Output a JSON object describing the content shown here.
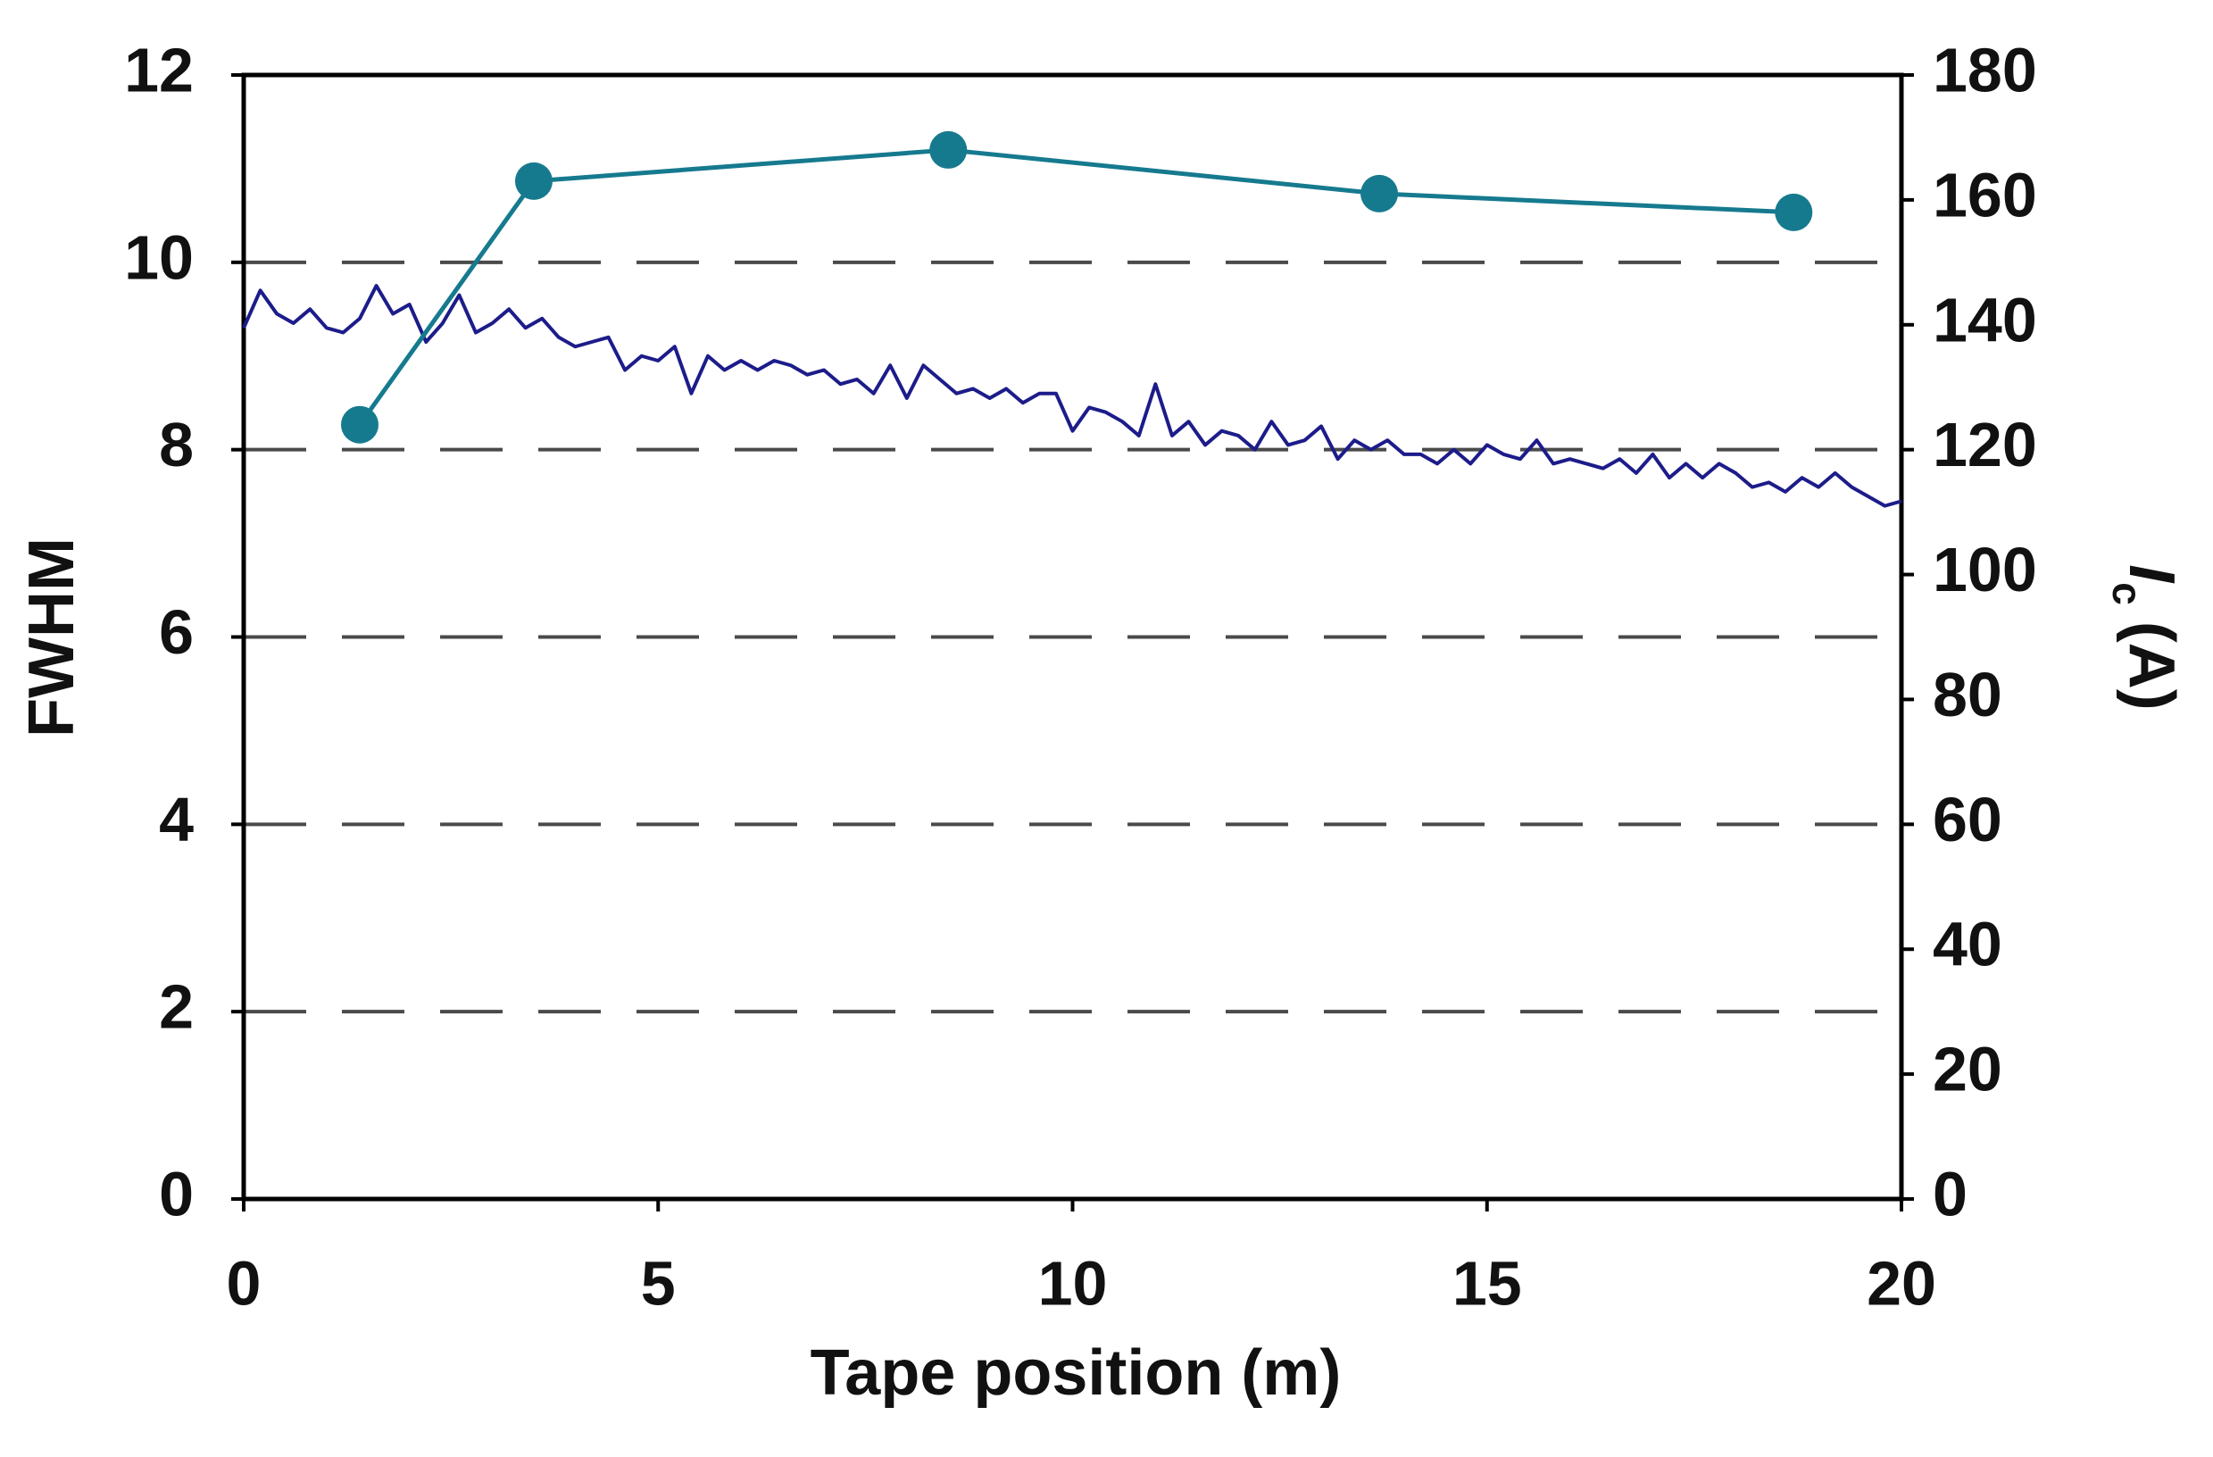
{
  "chart_data": {
    "type": "line",
    "x_label": "Tape position (m)",
    "y_label": "FWHM",
    "y2_label": {
      "italic": "I",
      "sub": "c",
      "rest": "(A)"
    },
    "xlim": [
      0,
      20
    ],
    "xticks": [
      0,
      5,
      10,
      15,
      20
    ],
    "ylim": [
      0,
      12
    ],
    "yticks": [
      0,
      2,
      4,
      6,
      8,
      10,
      12
    ],
    "y2lim": [
      0,
      180
    ],
    "y2ticks": [
      0,
      20,
      40,
      60,
      80,
      100,
      120,
      140,
      160,
      180
    ],
    "grid": true,
    "series": [
      {
        "color": "#1c1c8a",
        "x": [
          0,
          0.2,
          0.4,
          0.6,
          0.8,
          1.0,
          1.2,
          1.4,
          1.6,
          1.8,
          2.0,
          2.2,
          2.4,
          2.6,
          2.8,
          3.0,
          3.2,
          3.4,
          3.6,
          3.8,
          4.0,
          4.2,
          4.4,
          4.6,
          4.8,
          5.0,
          5.2,
          5.4,
          5.6,
          5.8,
          6.0,
          6.2,
          6.4,
          6.6,
          6.8,
          7.0,
          7.2,
          7.4,
          7.6,
          7.8,
          8.0,
          8.2,
          8.4,
          8.6,
          8.8,
          9.0,
          9.2,
          9.4,
          9.6,
          9.8,
          10.0,
          10.2,
          10.4,
          10.6,
          10.8,
          11.0,
          11.2,
          11.4,
          11.6,
          11.8,
          12.0,
          12.2,
          12.4,
          12.6,
          12.8,
          13.0,
          13.2,
          13.4,
          13.6,
          13.8,
          14.0,
          14.2,
          14.4,
          14.6,
          14.8,
          15.0,
          15.2,
          15.4,
          15.6,
          15.8,
          16.0,
          16.2,
          16.4,
          16.6,
          16.8,
          17.0,
          17.2,
          17.4,
          17.6,
          17.8,
          18.0,
          18.2,
          18.4,
          18.6,
          18.8,
          19.0,
          19.2,
          19.4,
          19.6,
          19.8,
          20.0
        ],
        "values": [
          9.3,
          9.7,
          9.45,
          9.35,
          9.5,
          9.3,
          9.25,
          9.4,
          9.75,
          9.45,
          9.55,
          9.15,
          9.35,
          9.65,
          9.25,
          9.35,
          9.5,
          9.3,
          9.4,
          9.2,
          9.1,
          9.15,
          9.2,
          8.85,
          9.0,
          8.95,
          9.1,
          8.6,
          9.0,
          8.85,
          8.95,
          8.85,
          8.95,
          8.9,
          8.8,
          8.85,
          8.7,
          8.75,
          8.6,
          8.9,
          8.55,
          8.9,
          8.75,
          8.6,
          8.65,
          8.55,
          8.65,
          8.5,
          8.6,
          8.6,
          8.2,
          8.45,
          8.4,
          8.3,
          8.15,
          8.7,
          8.15,
          8.3,
          8.05,
          8.2,
          8.15,
          8.0,
          8.3,
          8.05,
          8.1,
          8.25,
          7.9,
          8.1,
          8.0,
          8.1,
          7.95,
          7.95,
          7.85,
          8.0,
          7.85,
          8.05,
          7.95,
          7.9,
          8.1,
          7.85,
          7.9,
          7.85,
          7.8,
          7.9,
          7.75,
          7.95,
          7.7,
          7.85,
          7.7,
          7.85,
          7.75,
          7.6,
          7.65,
          7.55,
          7.7,
          7.6,
          7.75,
          7.6,
          7.5,
          7.4,
          7.45
        ]
      },
      {
        "color": "#167a8f",
        "axis": "y2",
        "marker": "circle",
        "x": [
          1.4,
          3.5,
          8.5,
          13.7,
          18.7
        ],
        "values": [
          124,
          163,
          168,
          161,
          158
        ]
      }
    ]
  }
}
